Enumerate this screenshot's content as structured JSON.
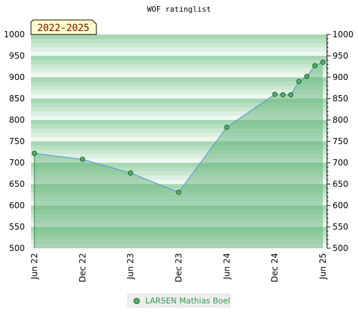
{
  "chart_data": {
    "type": "area",
    "title": "WOF ratinglist",
    "period_badge": "2022-2025",
    "ylim": [
      500,
      1000
    ],
    "y_ticks": [
      500,
      550,
      600,
      650,
      700,
      750,
      800,
      850,
      900,
      950,
      1000
    ],
    "x_ticks": [
      {
        "label": "Jun 22",
        "date": "2022-06"
      },
      {
        "label": "Dec 22",
        "date": "2022-12"
      },
      {
        "label": "Jun 23",
        "date": "2023-06"
      },
      {
        "label": "Dec 23",
        "date": "2023-12"
      },
      {
        "label": "Jun 24",
        "date": "2024-06"
      },
      {
        "label": "Dec 24",
        "date": "2024-12"
      },
      {
        "label": "Jun 25",
        "date": "2025-06"
      }
    ],
    "series": [
      {
        "name": "LARSEN Mathias Boel",
        "points": [
          {
            "date": "2022-06",
            "value": 722
          },
          {
            "date": "2022-12",
            "value": 708
          },
          {
            "date": "2023-06",
            "value": 676
          },
          {
            "date": "2023-12",
            "value": 631
          },
          {
            "date": "2024-06",
            "value": 783
          },
          {
            "date": "2024-12",
            "value": 860
          },
          {
            "date": "2025-01",
            "value": 859
          },
          {
            "date": "2025-02",
            "value": 859
          },
          {
            "date": "2025-03",
            "value": 890
          },
          {
            "date": "2025-04",
            "value": 902
          },
          {
            "date": "2025-05",
            "value": 927
          },
          {
            "date": "2025-06",
            "value": 935
          }
        ]
      }
    ],
    "grid": true,
    "legend_position": "bottom-center",
    "colors": {
      "line": "#5b9bd5",
      "marker_fill": "#52b26a",
      "marker_stroke": "#1e5a2a",
      "area_fill": "#63b377",
      "band_dark": "#a6d8b2",
      "band_light": "#eef7f0",
      "legend_text": "#2e9c4e",
      "badge_bg": "#ffffcc",
      "badge_text": "#8b0000"
    }
  }
}
